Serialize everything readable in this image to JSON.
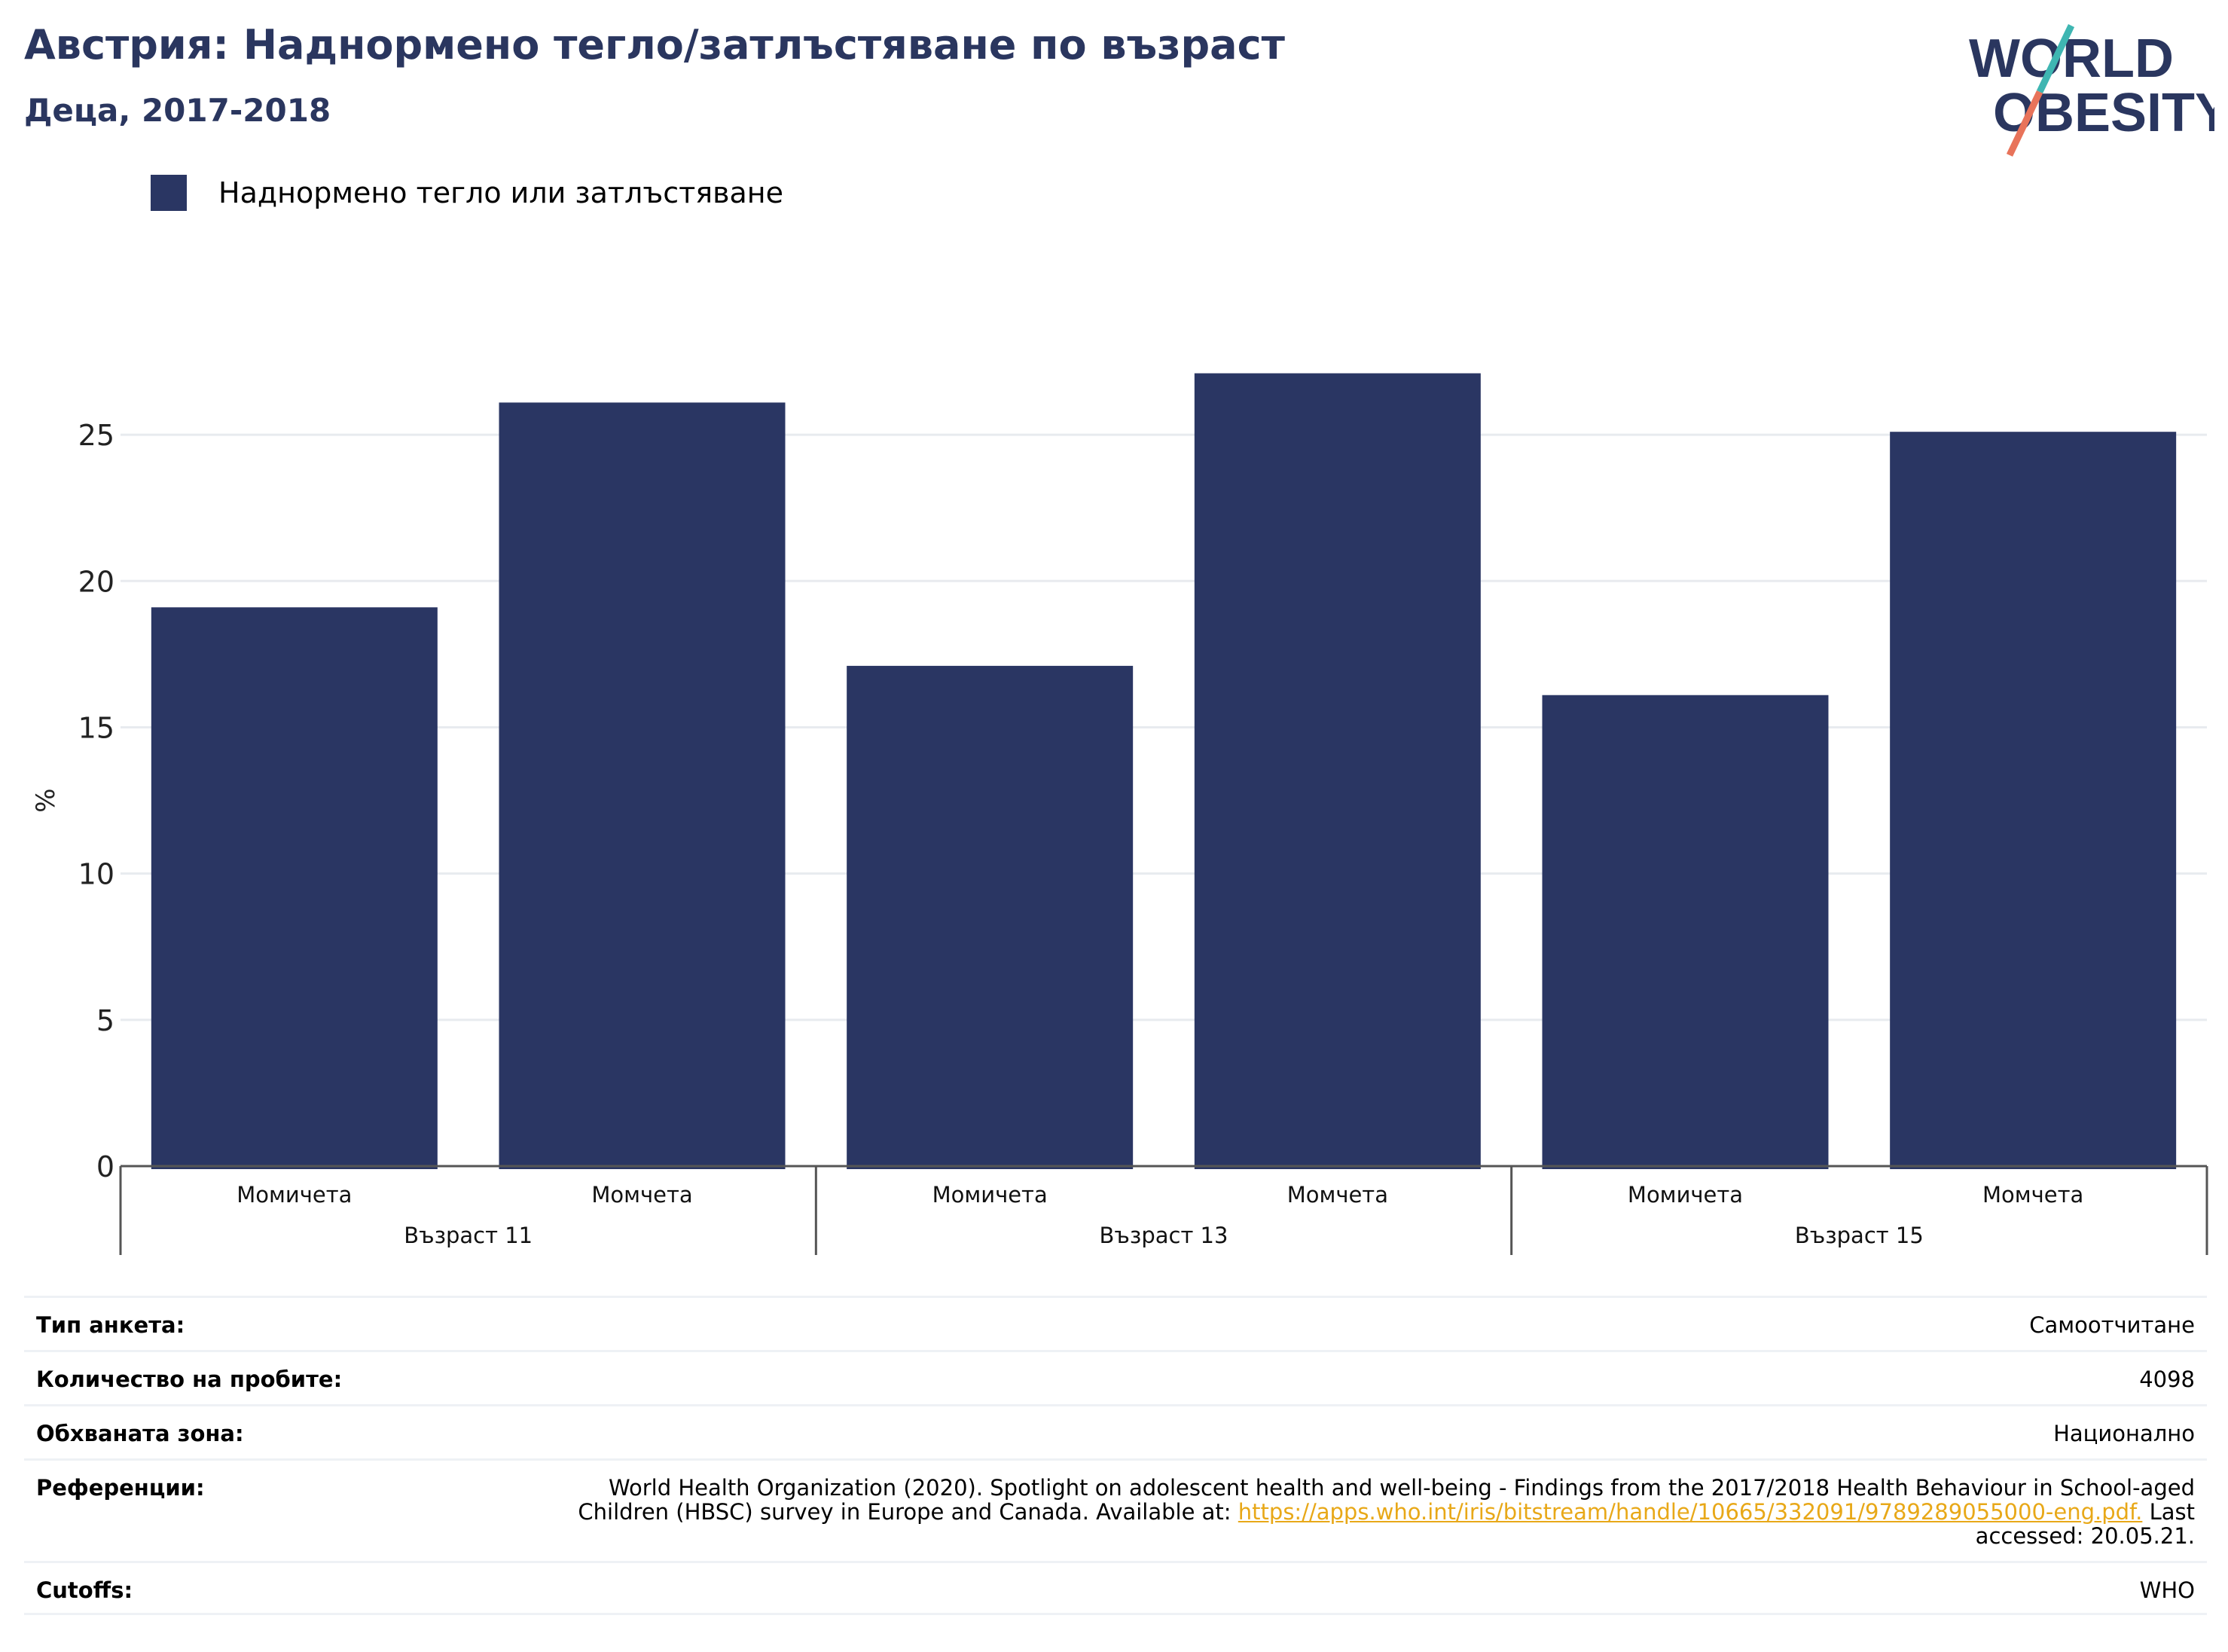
{
  "header": {
    "title": "Австрия: Наднормено тегло/затлъстяване по възраст",
    "subtitle": "Деца, 2017-2018"
  },
  "logo": {
    "line1": "WORLD",
    "line2": "OBESITY"
  },
  "colors": {
    "bar": "#2a3663",
    "title": "#2a365f",
    "link": "#e8a818",
    "logo_teal": "#3fb6b2",
    "logo_coral": "#e8735a"
  },
  "chart_data": {
    "type": "bar",
    "legend": [
      "Наднормено тегло или затлъстяване"
    ],
    "legend_position": "top-left",
    "ylabel": "%",
    "ylim": [
      0,
      27.5
    ],
    "yticks": [
      0,
      5,
      10,
      15,
      20,
      25
    ],
    "grid": true,
    "groups": [
      {
        "label": "Възраст 11",
        "categories": [
          "Момичета",
          "Момчета"
        ],
        "values": [
          19.1,
          26.1
        ]
      },
      {
        "label": "Възраст 13",
        "categories": [
          "Момичета",
          "Момчета"
        ],
        "values": [
          17.1,
          27.1
        ]
      },
      {
        "label": "Възраст 15",
        "categories": [
          "Момичета",
          "Момчета"
        ],
        "values": [
          16.1,
          25.1
        ]
      }
    ]
  },
  "meta": {
    "survey_type": {
      "key": "Тип анкета:",
      "value": "Самоотчитане"
    },
    "sample_size": {
      "key": "Количество на пробите:",
      "value": "4098"
    },
    "area": {
      "key": "Обхваната зона:",
      "value": "Национално"
    },
    "references": {
      "key": "Референции:",
      "text": "World Health Organization (2020). Spotlight on adolescent health and well-being - Findings from the 2017/2018 Health Behaviour in School-aged Children (HBSC) survey in Europe and Canada. Available at: ",
      "link": "https://apps.who.int/iris/bitstream/handle/10665/332091/9789289055000-eng.pdf.",
      "suffix": " Last accessed: 20.05.21."
    },
    "cutoffs": {
      "key": "Cutoffs:",
      "value": "WHO"
    }
  }
}
